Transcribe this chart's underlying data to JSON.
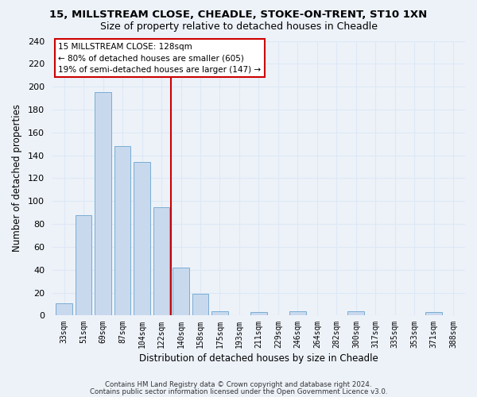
{
  "title": "15, MILLSTREAM CLOSE, CHEADLE, STOKE-ON-TRENT, ST10 1XN",
  "subtitle": "Size of property relative to detached houses in Cheadle",
  "xlabel": "Distribution of detached houses by size in Cheadle",
  "ylabel": "Number of detached properties",
  "bar_labels": [
    "33sqm",
    "51sqm",
    "69sqm",
    "87sqm",
    "104sqm",
    "122sqm",
    "140sqm",
    "158sqm",
    "175sqm",
    "193sqm",
    "211sqm",
    "229sqm",
    "246sqm",
    "264sqm",
    "282sqm",
    "300sqm",
    "317sqm",
    "335sqm",
    "353sqm",
    "371sqm",
    "388sqm"
  ],
  "bar_values": [
    11,
    88,
    195,
    148,
    134,
    95,
    42,
    19,
    4,
    0,
    3,
    0,
    4,
    0,
    0,
    4,
    0,
    0,
    0,
    3,
    0
  ],
  "bar_color": "#c8d9ee",
  "bar_edge_color": "#7aadd4",
  "vline_color": "#cc0000",
  "annotation_title": "15 MILLSTREAM CLOSE: 128sqm",
  "annotation_line1": "← 80% of detached houses are smaller (605)",
  "annotation_line2": "19% of semi-detached houses are larger (147) →",
  "annotation_box_facecolor": "#ffffff",
  "annotation_box_edgecolor": "#cc0000",
  "ylim": [
    0,
    240
  ],
  "yticks": [
    0,
    20,
    40,
    60,
    80,
    100,
    120,
    140,
    160,
    180,
    200,
    220,
    240
  ],
  "grid_color": "#dde8f5",
  "background_color": "#edf2f9",
  "footer1": "Contains HM Land Registry data © Crown copyright and database right 2024.",
  "footer2": "Contains public sector information licensed under the Open Government Licence v3.0."
}
